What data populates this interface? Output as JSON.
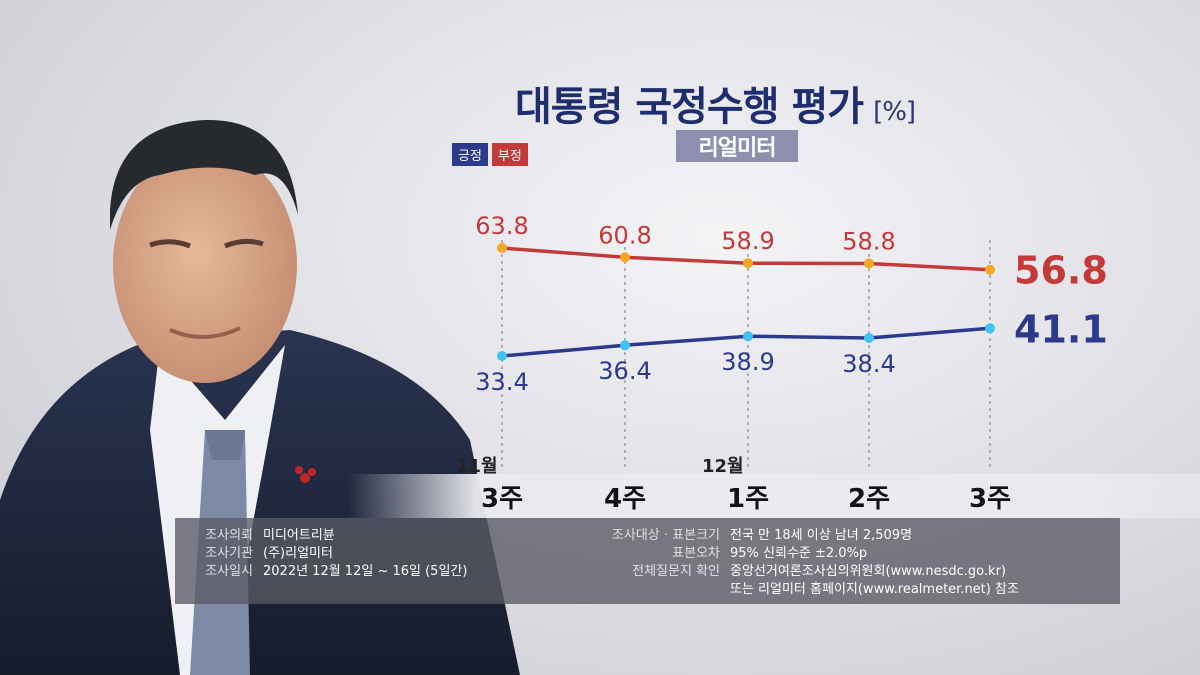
{
  "title": "대통령 국정수행 평가",
  "unit": "[%]",
  "source_badge": "리얼미터",
  "legend": {
    "positive": "긍정",
    "negative": "부정"
  },
  "colors": {
    "positive": "#2b3a8c",
    "negative": "#c43a3a",
    "positive_dot": "#3fc3f0",
    "negative_dot": "#f5a623"
  },
  "chart_data": {
    "type": "line",
    "categories": [
      "3주",
      "4주",
      "1주",
      "2주",
      "3주"
    ],
    "month_labels": [
      {
        "text": "11월",
        "index": 0
      },
      {
        "text": "12월",
        "index": 2
      }
    ],
    "series": [
      {
        "name": "긍정",
        "values": [
          33.4,
          36.4,
          38.9,
          38.4,
          41.1
        ]
      },
      {
        "name": "부정",
        "values": [
          63.8,
          60.8,
          58.9,
          58.8,
          56.8
        ]
      }
    ]
  },
  "info": {
    "left": [
      {
        "key": "조사의뢰",
        "value": "미디어트리뷴"
      },
      {
        "key": "조사기관",
        "value": "(주)리얼미터"
      },
      {
        "key": "조사일시",
        "value": "2022년 12월 12일 ~ 16일 (5일간)"
      }
    ],
    "right": [
      {
        "key": "조사대상 · 표본크기",
        "value": "전국 만 18세 이상 남녀 2,509명"
      },
      {
        "key": "표본오차",
        "value": "95% 신뢰수준 ±2.0%p"
      },
      {
        "key": "전체질문지 확인",
        "value": "중앙선거여론조사심의위원회(www.nesdc.go.kr)"
      },
      {
        "key": "",
        "value": "또는 리얼미터 홈페이지(www.realmeter.net) 참조"
      }
    ]
  }
}
